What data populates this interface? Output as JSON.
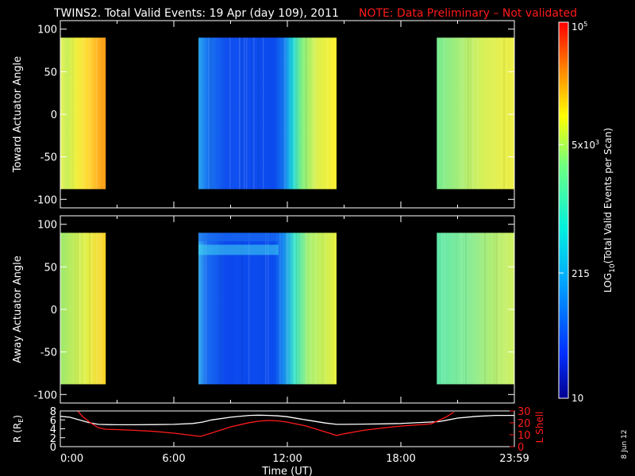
{
  "title": "TWINS2. Total Valid Events: 19 Apr (day 109), 2011",
  "note": "NOTE: Data Preliminary – Not validated",
  "date_stamp": "8 Jun 12",
  "colorbar": {
    "title": "LOG",
    "title_sub": "10",
    "title_rest": "(Total Valid Events per Scan)",
    "ticks": [
      {
        "label": "10",
        "value": 10
      },
      {
        "label": "215",
        "value": 215
      },
      {
        "label": "5x10",
        "sup": "3",
        "value": 5000
      },
      {
        "label": "10",
        "sup": "5",
        "value": 100000
      }
    ]
  },
  "chart_data": [
    {
      "type": "heatmap",
      "name": "toward",
      "ylabel": "Toward Actuator Angle",
      "ylim": [
        -110,
        110
      ],
      "yticks": [
        "100",
        "50",
        "0",
        "-50",
        "-100"
      ],
      "ytick_values": [
        100,
        50,
        0,
        -50,
        -100
      ],
      "xlim": [
        0,
        24
      ],
      "angle_range": [
        -88,
        90
      ],
      "data_intervals_hours": [
        [
          0.0,
          2.4
        ],
        [
          7.3,
          14.6
        ],
        [
          19.9,
          24.0
        ]
      ],
      "color_scale": "log",
      "zlim": [
        10,
        100000
      ]
    },
    {
      "type": "heatmap",
      "name": "away",
      "ylabel": "Away Actuator Angle",
      "ylim": [
        -110,
        110
      ],
      "yticks": [
        "100",
        "50",
        "0",
        "-50",
        "-100"
      ],
      "ytick_values": [
        100,
        50,
        0,
        -50,
        -100
      ],
      "xlim": [
        0,
        24
      ],
      "angle_range": [
        -88,
        90
      ],
      "data_intervals_hours": [
        [
          0.0,
          2.4
        ],
        [
          7.3,
          14.6
        ],
        [
          19.9,
          24.0
        ]
      ],
      "color_scale": "log",
      "zlim": [
        10,
        100000
      ]
    },
    {
      "type": "line",
      "name": "orbit",
      "xlabel": "Time (UT)",
      "xticks": [
        "0:00",
        "6:00",
        "12:00",
        "18:00",
        "23:59"
      ],
      "xtick_values": [
        0,
        6,
        12,
        18,
        24
      ],
      "xlim": [
        0,
        24
      ],
      "left_axis": {
        "label": "R (R",
        "label_sub": "E",
        "label_end": ")",
        "ylim": [
          0,
          8
        ],
        "ticks": [
          "8",
          "6",
          "4",
          "2",
          "0"
        ],
        "tick_values": [
          8,
          6,
          4,
          2,
          0
        ]
      },
      "right_axis": {
        "label": "L Shell",
        "ylim": [
          0,
          30
        ],
        "ticks": [
          "30",
          "20",
          "10",
          "0"
        ],
        "tick_values": [
          30,
          20,
          10,
          0
        ]
      },
      "series": [
        {
          "axis": "left",
          "color": "#ffffff",
          "x": [
            0,
            0.5,
            1.0,
            1.5,
            2.0,
            2.5,
            3,
            4,
            5,
            6,
            7,
            7.5,
            8,
            9,
            10,
            10.5,
            11,
            11.5,
            12,
            13,
            14,
            14.6,
            15,
            16,
            17,
            18,
            19,
            20,
            20.5,
            21,
            22,
            23,
            24
          ],
          "y": [
            6.8,
            6.6,
            6.0,
            5.4,
            5.0,
            4.95,
            4.9,
            4.9,
            4.95,
            5.0,
            5.2,
            5.5,
            6.0,
            6.6,
            7.0,
            7.05,
            7.0,
            6.9,
            6.7,
            6.0,
            5.3,
            5.0,
            5.0,
            5.05,
            5.1,
            5.2,
            5.4,
            5.6,
            6.0,
            6.4,
            6.8,
            7.0,
            7.0
          ]
        },
        {
          "axis": "right",
          "color": "#ff1a1a",
          "x": [
            0.8,
            1.2,
            1.6,
            2.0,
            2.4,
            3,
            4,
            5,
            6,
            7,
            7.4,
            8,
            9,
            10,
            10.5,
            11,
            11.5,
            12,
            13,
            14,
            14.6,
            15,
            16,
            17,
            18,
            19,
            19.6,
            20,
            20.4,
            20.8
          ],
          "y": [
            32,
            25,
            20,
            16,
            14.6,
            14.3,
            13.7,
            12.8,
            11.3,
            9.4,
            8.6,
            11.5,
            16.6,
            20.2,
            21.4,
            22.0,
            21.7,
            20.6,
            17.3,
            12.4,
            9.4,
            10.8,
            13.7,
            15.6,
            17.3,
            18.4,
            19.2,
            22,
            25,
            29
          ]
        }
      ]
    }
  ]
}
